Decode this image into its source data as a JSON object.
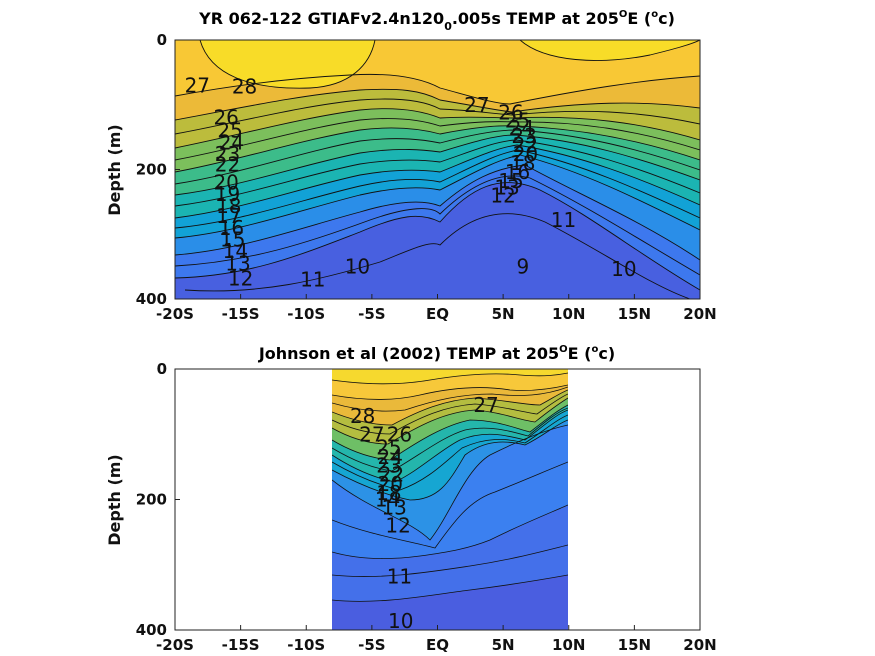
{
  "chart_data": [
    {
      "type": "heatmap",
      "title_main": "YR 062-122 GTIAFv2.4n120",
      "title_sub": "0",
      "title_tail": ".005s TEMP at 205",
      "title_deg_sup": "O",
      "title_unit_pre": "E (",
      "title_unit_sup": "o",
      "title_unit_post": "c)",
      "ylabel": "Depth (m)",
      "xticks": [
        "-20S",
        "-15S",
        "-10S",
        "-5S",
        "EQ",
        "5N",
        "10N",
        "15N",
        "20N"
      ],
      "yticks": [
        "0",
        "200",
        "400"
      ],
      "x_range": [
        -20,
        20
      ],
      "y_range": [
        0,
        400
      ],
      "y_reversed": true,
      "data_extent": [
        -20,
        20
      ],
      "colormap": "parula",
      "color_range": [
        8,
        29
      ],
      "contour_labels": [
        {
          "text": "28",
          "x": -14.7,
          "y": 72
        },
        {
          "text": "27",
          "x": -18.3,
          "y": 70
        },
        {
          "text": "26",
          "x": -16.1,
          "y": 120
        },
        {
          "text": "25",
          "x": -15.8,
          "y": 140
        },
        {
          "text": "24",
          "x": -15.7,
          "y": 158
        },
        {
          "text": "23",
          "x": -16.0,
          "y": 176
        },
        {
          "text": "22",
          "x": -16.0,
          "y": 192
        },
        {
          "text": "20",
          "x": -16.1,
          "y": 220
        },
        {
          "text": "19",
          "x": -16.0,
          "y": 238
        },
        {
          "text": "18",
          "x": -15.9,
          "y": 256
        },
        {
          "text": "17",
          "x": -15.9,
          "y": 272
        },
        {
          "text": "16",
          "x": -15.7,
          "y": 290
        },
        {
          "text": "15",
          "x": -15.6,
          "y": 308
        },
        {
          "text": "14",
          "x": -15.4,
          "y": 326
        },
        {
          "text": "13",
          "x": -15.2,
          "y": 345
        },
        {
          "text": "12",
          "x": -15.0,
          "y": 368
        },
        {
          "text": "11",
          "x": -9.5,
          "y": 370
        },
        {
          "text": "10",
          "x": -6.1,
          "y": 350
        },
        {
          "text": "27",
          "x": 3.0,
          "y": 100
        },
        {
          "text": "26",
          "x": 5.6,
          "y": 112
        },
        {
          "text": "25",
          "x": 6.1,
          "y": 124
        },
        {
          "text": "24",
          "x": 6.4,
          "y": 136
        },
        {
          "text": "23",
          "x": 6.6,
          "y": 148
        },
        {
          "text": "22",
          "x": 6.7,
          "y": 162
        },
        {
          "text": "20",
          "x": 6.7,
          "y": 176
        },
        {
          "text": "18",
          "x": 6.5,
          "y": 190
        },
        {
          "text": "16",
          "x": 6.1,
          "y": 204
        },
        {
          "text": "15",
          "x": 5.6,
          "y": 218
        },
        {
          "text": "13",
          "x": 5.3,
          "y": 228
        },
        {
          "text": "12",
          "x": 5.0,
          "y": 240
        },
        {
          "text": "11",
          "x": 9.6,
          "y": 278
        },
        {
          "text": "10",
          "x": 14.2,
          "y": 354
        },
        {
          "text": "9",
          "x": 6.5,
          "y": 350
        }
      ]
    },
    {
      "type": "heatmap",
      "title_main": "Johnson et al (2002) TEMP at 205",
      "title_deg_sup": "O",
      "title_unit_pre": "E (",
      "title_unit_sup": "o",
      "title_unit_post": "c)",
      "ylabel": "Depth (m)",
      "xticks": [
        "-20S",
        "-15S",
        "-10S",
        "-5S",
        "EQ",
        "5N",
        "10N",
        "15N",
        "20N"
      ],
      "yticks": [
        "0",
        "200",
        "400"
      ],
      "x_range": [
        -20,
        20
      ],
      "y_range": [
        0,
        400
      ],
      "y_reversed": true,
      "data_extent": [
        -8,
        10
      ],
      "colormap": "parula",
      "color_range": [
        8,
        29
      ],
      "contour_labels": [
        {
          "text": "28",
          "x": -5.7,
          "y": 72
        },
        {
          "text": "27",
          "x": -5.0,
          "y": 100
        },
        {
          "text": "27",
          "x": 3.7,
          "y": 55
        },
        {
          "text": "26",
          "x": -2.9,
          "y": 100
        },
        {
          "text": "25",
          "x": -3.7,
          "y": 120
        },
        {
          "text": "24",
          "x": -3.6,
          "y": 135
        },
        {
          "text": "23",
          "x": -3.7,
          "y": 148
        },
        {
          "text": "22",
          "x": -3.5,
          "y": 162
        },
        {
          "text": "20",
          "x": -3.6,
          "y": 176
        },
        {
          "text": "18",
          "x": -3.7,
          "y": 190
        },
        {
          "text": "14",
          "x": -3.8,
          "y": 200
        },
        {
          "text": "13",
          "x": -3.3,
          "y": 212
        },
        {
          "text": "12",
          "x": -3.0,
          "y": 240
        },
        {
          "text": "11",
          "x": -2.9,
          "y": 318
        },
        {
          "text": "10",
          "x": -2.8,
          "y": 386
        }
      ]
    }
  ]
}
